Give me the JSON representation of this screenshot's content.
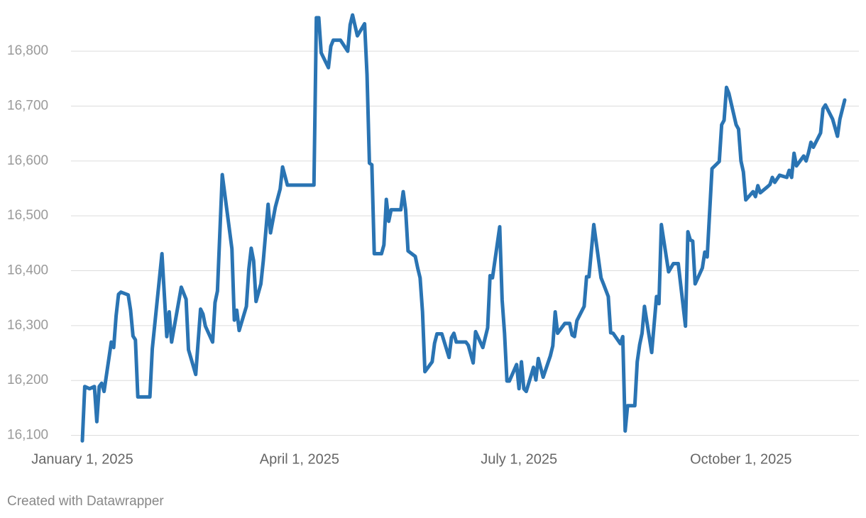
{
  "chart_data": {
    "type": "line",
    "credit": "Created with Datawrapper",
    "x": [
      "2025-01-01",
      "2025-01-02",
      "2025-01-04",
      "2025-01-06",
      "2025-01-07",
      "2025-01-08",
      "2025-01-09",
      "2025-01-10",
      "2025-01-13",
      "2025-01-14",
      "2025-01-15",
      "2025-01-16",
      "2025-01-17",
      "2025-01-20",
      "2025-01-21",
      "2025-01-22",
      "2025-01-23",
      "2025-01-24",
      "2025-01-29",
      "2025-01-30",
      "2025-02-03",
      "2025-02-05",
      "2025-02-06",
      "2025-02-07",
      "2025-02-11",
      "2025-02-13",
      "2025-02-14",
      "2025-02-17",
      "2025-02-19",
      "2025-02-20",
      "2025-02-21",
      "2025-02-24",
      "2025-02-25",
      "2025-02-26",
      "2025-02-28",
      "2025-03-04",
      "2025-03-05",
      "2025-03-06",
      "2025-03-07",
      "2025-03-10",
      "2025-03-11",
      "2025-03-12",
      "2025-03-13",
      "2025-03-14",
      "2025-03-16",
      "2025-03-17",
      "2025-03-19",
      "2025-03-20",
      "2025-03-22",
      "2025-03-24",
      "2025-03-25",
      "2025-03-27",
      "2025-04-07",
      "2025-04-08",
      "2025-04-09",
      "2025-04-10",
      "2025-04-13",
      "2025-04-14",
      "2025-04-15",
      "2025-04-18",
      "2025-04-21",
      "2025-04-22",
      "2025-04-23",
      "2025-04-25",
      "2025-04-28",
      "2025-04-29",
      "2025-04-30",
      "2025-05-01",
      "2025-05-02",
      "2025-05-05",
      "2025-05-06",
      "2025-05-07",
      "2025-05-08",
      "2025-05-09",
      "2025-05-13",
      "2025-05-14",
      "2025-05-15",
      "2025-05-16",
      "2025-05-19",
      "2025-05-20",
      "2025-05-21",
      "2025-05-22",
      "2025-05-23",
      "2025-05-26",
      "2025-05-27",
      "2025-05-28",
      "2025-05-30",
      "2025-06-02",
      "2025-06-03",
      "2025-06-04",
      "2025-06-05",
      "2025-06-09",
      "2025-06-10",
      "2025-06-12",
      "2025-06-13",
      "2025-06-16",
      "2025-06-18",
      "2025-06-19",
      "2025-06-20",
      "2025-06-23",
      "2025-06-24",
      "2025-06-25",
      "2025-06-26",
      "2025-06-27",
      "2025-06-30",
      "2025-07-01",
      "2025-07-02",
      "2025-07-03",
      "2025-07-04",
      "2025-07-07",
      "2025-07-08",
      "2025-07-09",
      "2025-07-11",
      "2025-07-14",
      "2025-07-15",
      "2025-07-16",
      "2025-07-17",
      "2025-07-20",
      "2025-07-22",
      "2025-07-23",
      "2025-07-24",
      "2025-07-25",
      "2025-07-28",
      "2025-07-29",
      "2025-07-30",
      "2025-08-01",
      "2025-08-04",
      "2025-08-05",
      "2025-08-07",
      "2025-08-08",
      "2025-08-09",
      "2025-08-12",
      "2025-08-13",
      "2025-08-14",
      "2025-08-15",
      "2025-08-18",
      "2025-08-19",
      "2025-08-20",
      "2025-08-21",
      "2025-08-22",
      "2025-08-25",
      "2025-08-27",
      "2025-08-28",
      "2025-08-29",
      "2025-09-01",
      "2025-09-03",
      "2025-09-05",
      "2025-09-08",
      "2025-09-09",
      "2025-09-10",
      "2025-09-11",
      "2025-09-12",
      "2025-09-15",
      "2025-09-16",
      "2025-09-17",
      "2025-09-19",
      "2025-09-22",
      "2025-09-23",
      "2025-09-24",
      "2025-09-25",
      "2025-09-26",
      "2025-09-29",
      "2025-09-30",
      "2025-10-01",
      "2025-10-02",
      "2025-10-03",
      "2025-10-06",
      "2025-10-07",
      "2025-10-08",
      "2025-10-09",
      "2025-10-12",
      "2025-10-13",
      "2025-10-14",
      "2025-10-15",
      "2025-10-17",
      "2025-10-20",
      "2025-10-21",
      "2025-10-22",
      "2025-10-23",
      "2025-10-24",
      "2025-10-27",
      "2025-10-28",
      "2025-10-29",
      "2025-10-30",
      "2025-10-31",
      "2025-11-03",
      "2025-11-04",
      "2025-11-05",
      "2025-11-08",
      "2025-11-10",
      "2025-11-11",
      "2025-11-13"
    ],
    "series": [
      {
        "color": "#2a74b3",
        "values": [
          16090,
          16189,
          16185,
          16189,
          16125,
          16189,
          16195,
          16180,
          16270,
          16260,
          16318,
          16357,
          16361,
          16356,
          16328,
          16281,
          16274,
          16170,
          16170,
          16258,
          16431,
          16280,
          16325,
          16270,
          16370,
          16348,
          16256,
          16211,
          16330,
          16321,
          16299,
          16270,
          16342,
          16363,
          16575,
          16440,
          16310,
          16328,
          16291,
          16335,
          16402,
          16441,
          16418,
          16344,
          16376,
          16418,
          16521,
          16469,
          16516,
          16549,
          16589,
          16556,
          16556,
          16861,
          16861,
          16797,
          16770,
          16809,
          16820,
          16820,
          16800,
          16848,
          16866,
          16828,
          16850,
          16757,
          16596,
          16593,
          16431,
          16431,
          16447,
          16530,
          16490,
          16511,
          16511,
          16544,
          16511,
          16436,
          16426,
          16405,
          16387,
          16325,
          16216,
          16234,
          16268,
          16285,
          16285,
          16242,
          16278,
          16286,
          16270,
          16270,
          16264,
          16232,
          16289,
          16260,
          16296,
          16391,
          16387,
          16480,
          16347,
          16286,
          16199,
          16199,
          16229,
          16185,
          16234,
          16185,
          16180,
          16224,
          16201,
          16240,
          16206,
          16245,
          16263,
          16325,
          16286,
          16304,
          16304,
          16283,
          16280,
          16309,
          16335,
          16389,
          16389,
          16484,
          16387,
          16376,
          16353,
          16287,
          16286,
          16267,
          16280,
          16108,
          16154,
          16154,
          16234,
          16265,
          16286,
          16335,
          16251,
          16353,
          16340,
          16484,
          16398,
          16413,
          16413,
          16299,
          16471,
          16456,
          16454,
          16376,
          16405,
          16434,
          16425,
          16586,
          16599,
          16666,
          16674,
          16734,
          16723,
          16666,
          16658,
          16600,
          16580,
          16529,
          16544,
          16535,
          16555,
          16542,
          16553,
          16557,
          16570,
          16561,
          16574,
          16570,
          16583,
          16570,
          16614,
          16591,
          16609,
          16600,
          16615,
          16634,
          16625,
          16651,
          16695,
          16702,
          16676,
          16645,
          16676,
          16711
        ]
      }
    ],
    "xlim": [
      "2025-01-01",
      "2025-11-13"
    ],
    "xticks": [
      {
        "value": "2025-01-01",
        "label": "January 1, 2025"
      },
      {
        "value": "2025-04-01",
        "label": "April 1, 2025"
      },
      {
        "value": "2025-07-01",
        "label": "July 1, 2025"
      },
      {
        "value": "2025-10-01",
        "label": "October 1, 2025"
      }
    ],
    "ylim": [
      16080,
      16870
    ],
    "yticks": [
      {
        "value": 16100,
        "label": "16,100"
      },
      {
        "value": 16200,
        "label": "16,200"
      },
      {
        "value": 16300,
        "label": "16,300"
      },
      {
        "value": 16400,
        "label": "16,400"
      },
      {
        "value": 16500,
        "label": "16,500"
      },
      {
        "value": 16600,
        "label": "16,600"
      },
      {
        "value": 16700,
        "label": "16,700"
      },
      {
        "value": 16800,
        "label": "16,800"
      }
    ],
    "grid": true
  }
}
